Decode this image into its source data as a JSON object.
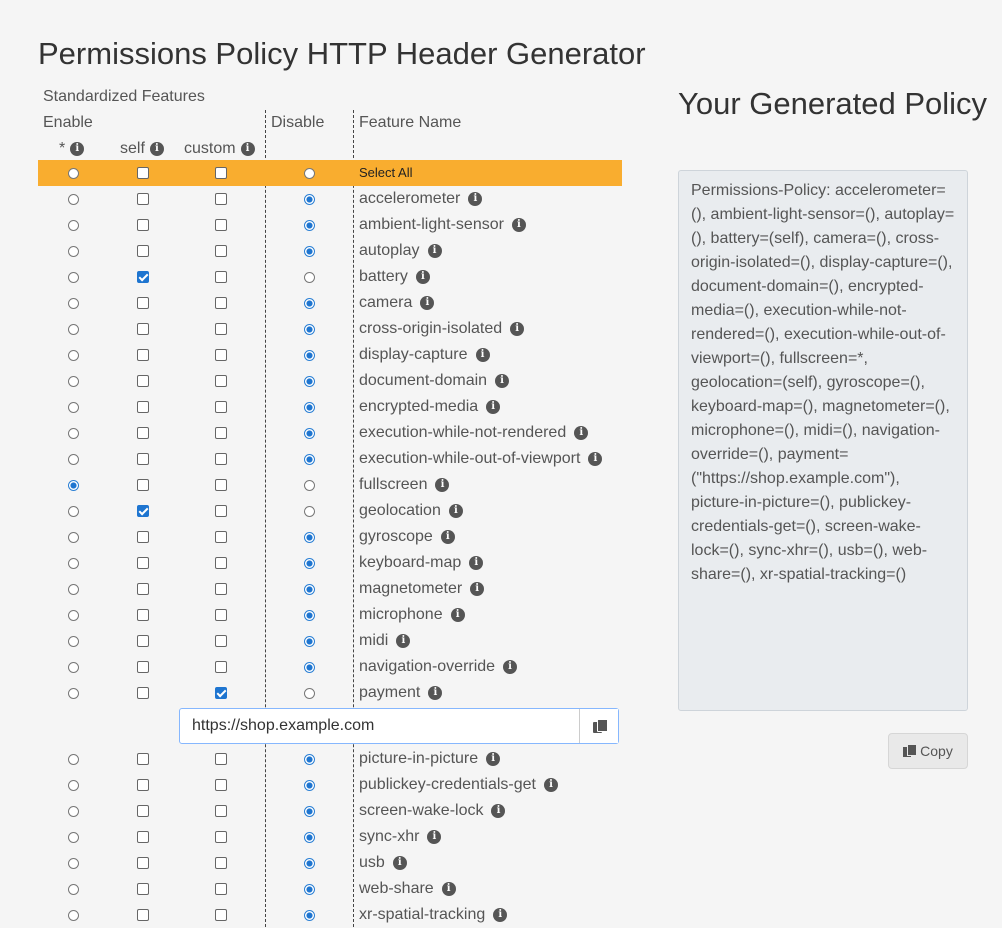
{
  "page_title": "Permissions Policy HTTP Header Generator",
  "table": {
    "section_label": "Standardized Features",
    "enable_label": "Enable",
    "star_label": "*",
    "self_label": "self",
    "custom_label": "custom",
    "disable_label": "Disable",
    "feature_name_label": "Feature Name",
    "select_all_label": "Select All",
    "info_glyph": "i",
    "custom_input": {
      "feature": "payment",
      "value": "https://shop.example.com"
    },
    "features": [
      {
        "name": "accelerometer",
        "star": false,
        "self": false,
        "custom": false,
        "disable": true
      },
      {
        "name": "ambient-light-sensor",
        "star": false,
        "self": false,
        "custom": false,
        "disable": true
      },
      {
        "name": "autoplay",
        "star": false,
        "self": false,
        "custom": false,
        "disable": true
      },
      {
        "name": "battery",
        "star": false,
        "self": true,
        "custom": false,
        "disable": false
      },
      {
        "name": "camera",
        "star": false,
        "self": false,
        "custom": false,
        "disable": true
      },
      {
        "name": "cross-origin-isolated",
        "star": false,
        "self": false,
        "custom": false,
        "disable": true
      },
      {
        "name": "display-capture",
        "star": false,
        "self": false,
        "custom": false,
        "disable": true
      },
      {
        "name": "document-domain",
        "star": false,
        "self": false,
        "custom": false,
        "disable": true
      },
      {
        "name": "encrypted-media",
        "star": false,
        "self": false,
        "custom": false,
        "disable": true
      },
      {
        "name": "execution-while-not-rendered",
        "star": false,
        "self": false,
        "custom": false,
        "disable": true
      },
      {
        "name": "execution-while-out-of-viewport",
        "star": false,
        "self": false,
        "custom": false,
        "disable": true
      },
      {
        "name": "fullscreen",
        "star": true,
        "self": false,
        "custom": false,
        "disable": false
      },
      {
        "name": "geolocation",
        "star": false,
        "self": true,
        "custom": false,
        "disable": false
      },
      {
        "name": "gyroscope",
        "star": false,
        "self": false,
        "custom": false,
        "disable": true
      },
      {
        "name": "keyboard-map",
        "star": false,
        "self": false,
        "custom": false,
        "disable": true
      },
      {
        "name": "magnetometer",
        "star": false,
        "self": false,
        "custom": false,
        "disable": true
      },
      {
        "name": "microphone",
        "star": false,
        "self": false,
        "custom": false,
        "disable": true
      },
      {
        "name": "midi",
        "star": false,
        "self": false,
        "custom": false,
        "disable": true
      },
      {
        "name": "navigation-override",
        "star": false,
        "self": false,
        "custom": false,
        "disable": true
      },
      {
        "name": "payment",
        "star": false,
        "self": false,
        "custom": true,
        "disable": false
      },
      {
        "name": "picture-in-picture",
        "star": false,
        "self": false,
        "custom": false,
        "disable": true
      },
      {
        "name": "publickey-credentials-get",
        "star": false,
        "self": false,
        "custom": false,
        "disable": true
      },
      {
        "name": "screen-wake-lock",
        "star": false,
        "self": false,
        "custom": false,
        "disable": true
      },
      {
        "name": "sync-xhr",
        "star": false,
        "self": false,
        "custom": false,
        "disable": true
      },
      {
        "name": "usb",
        "star": false,
        "self": false,
        "custom": false,
        "disable": true
      },
      {
        "name": "web-share",
        "star": false,
        "self": false,
        "custom": false,
        "disable": true
      },
      {
        "name": "xr-spatial-tracking",
        "star": false,
        "self": false,
        "custom": false,
        "disable": true
      }
    ]
  },
  "output": {
    "title": "Your Generated Policy",
    "policy_text": "Permissions-Policy: accelerometer=(), ambient-light-sensor=(), autoplay=(), battery=(self), camera=(), cross-origin-isolated=(), display-capture=(), document-domain=(), encrypted-media=(), execution-while-not-rendered=(), execution-while-out-of-viewport=(), fullscreen=*, geolocation=(self), gyroscope=(), keyboard-map=(), magnetometer=(), microphone=(), midi=(), navigation-override=(), payment=(\"https://shop.example.com\"), picture-in-picture=(), publickey-credentials-get=(), screen-wake-lock=(), sync-xhr=(), usb=(), web-share=(), xr-spatial-tracking=()",
    "copy_label": "Copy"
  },
  "colors": {
    "select_all_bg": "#f9ad2f",
    "accent": "#1e75d0"
  }
}
